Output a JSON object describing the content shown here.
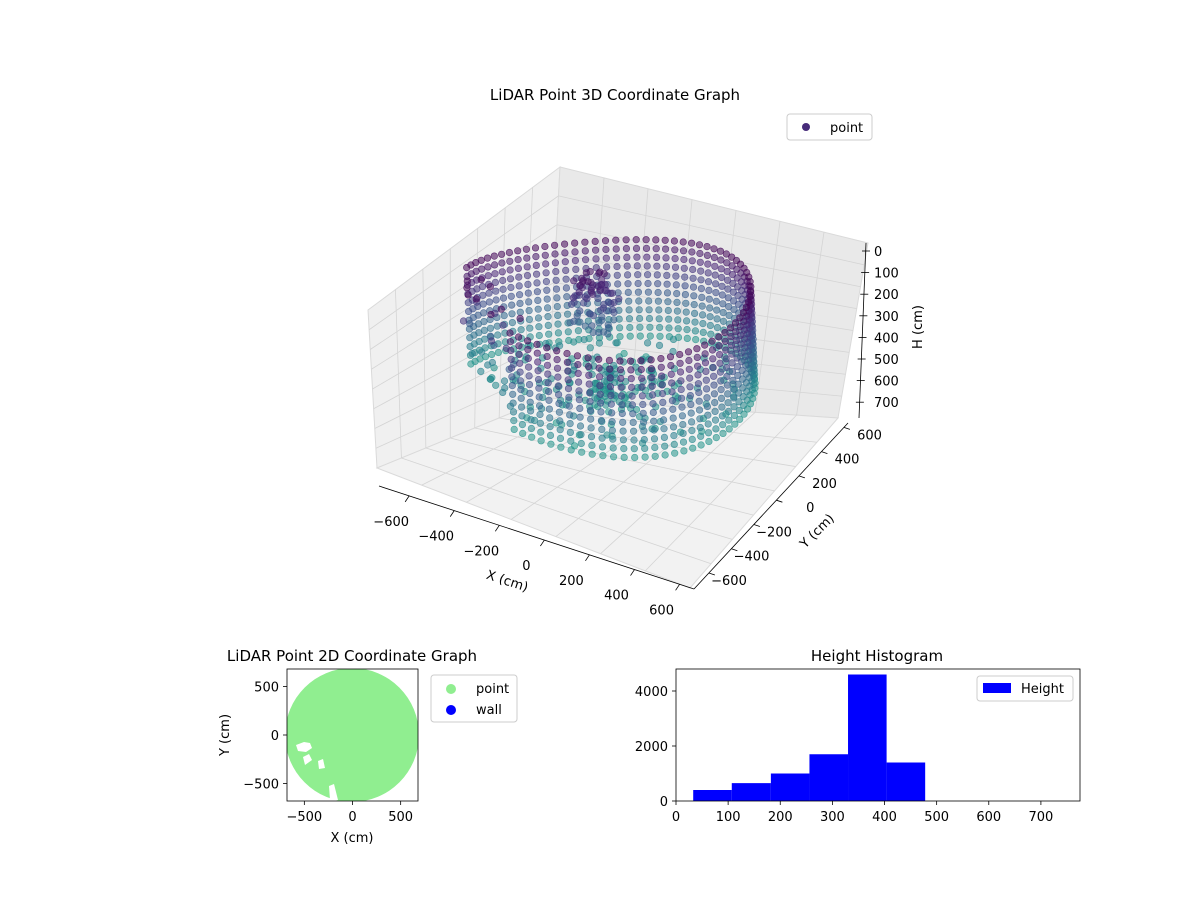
{
  "chart_data": [
    {
      "type": "scatter",
      "subtype": "3d",
      "title": "LiDAR Point 3D Coordinate Graph",
      "xlabel": "X (cm)",
      "ylabel": "Y (cm)",
      "zlabel": "H (cm)",
      "x_ticks": [
        "−600",
        "−400",
        "−200",
        "0",
        "200",
        "400",
        "600"
      ],
      "y_ticks": [
        "−600",
        "−400",
        "−200",
        "0",
        "200",
        "400",
        "600"
      ],
      "z_ticks": [
        "0",
        "100",
        "200",
        "300",
        "400",
        "500",
        "600",
        "700"
      ],
      "xlim": [
        -650,
        650
      ],
      "ylim": [
        -650,
        650
      ],
      "zlim": [
        0,
        760
      ],
      "z_inverted": true,
      "colormap": "viridis",
      "legend": {
        "entries": [
          {
            "label": "point",
            "color": "#472c7a"
          }
        ],
        "placement": "top-right"
      },
      "series": [
        {
          "name": "point",
          "description_shape": "ring of points near radius 560 cm, heights 30–470 cm, with partial gap toward negative X / negative Y"
        }
      ]
    },
    {
      "type": "scatter",
      "title": "LiDAR Point 2D Coordinate Graph",
      "xlabel": "X (cm)",
      "ylabel": "Y (cm)",
      "x_ticks": [
        "−500",
        "0",
        "500"
      ],
      "y_ticks": [
        "500",
        "0",
        "−500"
      ],
      "xlim": [
        -680,
        680
      ],
      "ylim": [
        -680,
        680
      ],
      "legend": {
        "placement": "outside-right",
        "entries": [
          {
            "label": "point",
            "color": "#90ee90"
          },
          {
            "label": "wall",
            "color": "#0000ff"
          }
        ]
      },
      "series": [
        {
          "name": "point",
          "color": "#90ee90",
          "shape": "filled disc radius ~650 cm"
        },
        {
          "name": "wall",
          "color": "#0000ff",
          "points": []
        }
      ]
    },
    {
      "type": "bar",
      "subtype": "histogram",
      "title": "Height Histogram",
      "xlabel": "",
      "ylabel": "",
      "x_ticks": [
        "0",
        "100",
        "200",
        "300",
        "400",
        "500",
        "600",
        "700"
      ],
      "y_ticks": [
        "0",
        "2000",
        "4000"
      ],
      "xlim": [
        0,
        775
      ],
      "ylim": [
        0,
        4800
      ],
      "color": "#0000ff",
      "legend": {
        "placement": "top-right",
        "entries": [
          {
            "label": "Height",
            "color": "#0000ff"
          }
        ]
      },
      "bins": [
        {
          "x0": 33,
          "x1": 107,
          "count": 400
        },
        {
          "x0": 107,
          "x1": 182,
          "count": 650
        },
        {
          "x0": 182,
          "x1": 256,
          "count": 1000
        },
        {
          "x0": 256,
          "x1": 330,
          "count": 1700
        },
        {
          "x0": 330,
          "x1": 404,
          "count": 4600
        },
        {
          "x0": 404,
          "x1": 478,
          "count": 1400
        },
        {
          "x0": 478,
          "x1": 553,
          "count": 0
        },
        {
          "x0": 553,
          "x1": 627,
          "count": 0
        },
        {
          "x0": 627,
          "x1": 701,
          "count": 0
        },
        {
          "x0": 701,
          "x1": 775,
          "count": 0
        }
      ]
    }
  ]
}
